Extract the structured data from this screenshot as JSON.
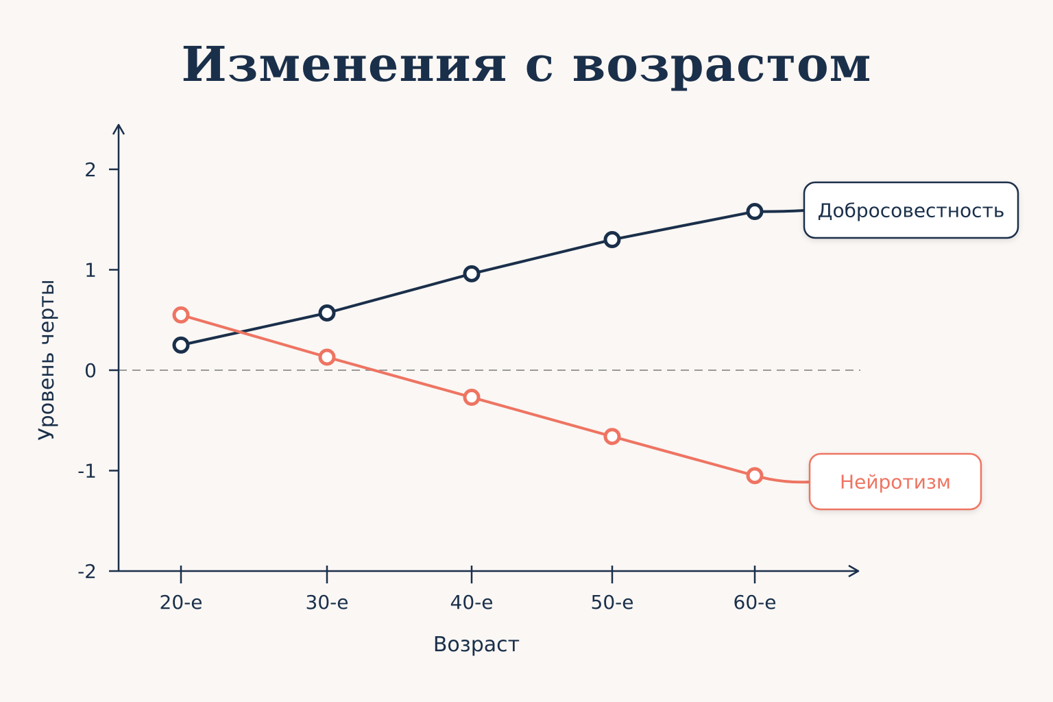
{
  "chart_data": {
    "type": "line",
    "title": "Изменения с возрастом",
    "xlabel": "Возраст",
    "ylabel": "Уровень черты",
    "categories": [
      "20-е",
      "30-е",
      "40-е",
      "50-е",
      "60-е"
    ],
    "yticks": [
      "2",
      "1",
      "0",
      "-1",
      "-2"
    ],
    "ylim": [
      -2,
      2.4
    ],
    "reference_line": 0,
    "grid": false,
    "series": [
      {
        "name": "Добросовестность",
        "values": [
          0.25,
          0.57,
          0.96,
          1.3,
          1.58
        ],
        "color": "#1a2f4a"
      },
      {
        "name": "Нейротизм",
        "values": [
          0.55,
          0.13,
          -0.27,
          -0.66,
          -1.05
        ],
        "color": "#ee7462"
      }
    ]
  }
}
